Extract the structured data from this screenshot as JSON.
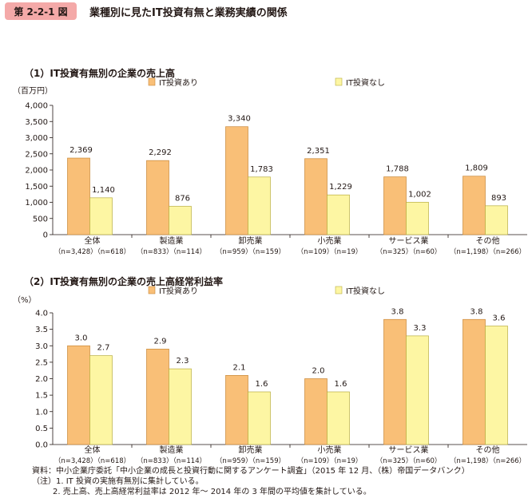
{
  "figure": {
    "number": "第 2-2-1 図",
    "title": "業種別に見たIT投資有無と業務実績の関係"
  },
  "notes": {
    "source": "資料：中小企業庁委託「中小企業の成長と投資行動に関するアンケート調査」（2015 年 12 月、（株）帝国データバンク）",
    "note1": "（注）1. IT 投資の実施有無別に集計している。",
    "note2": "2. 売上高、売上高経常利益率は 2012 年〜 2014 年の 3 年間の平均値を集計している。"
  },
  "colors": {
    "invest": "#f9bf77",
    "invest_stroke": "#c8883a",
    "no_invest": "#fdf6a3",
    "no_invest_stroke": "#b8ae40"
  },
  "chart_data": [
    {
      "type": "bar",
      "title": "（1）IT投資有無別の企業の売上高",
      "ylabel": "（百万円）",
      "ylim": [
        0,
        4000
      ],
      "yticks": [
        "0",
        "500",
        "1,000",
        "1,500",
        "2,000",
        "2,500",
        "3,000",
        "3,500",
        "4,000"
      ],
      "ytick_values": [
        0,
        500,
        1000,
        1500,
        2000,
        2500,
        3000,
        3500,
        4000
      ],
      "categories": [
        "全体",
        "製造業",
        "卸売業",
        "小売業",
        "サービス業",
        "その他"
      ],
      "category_counts": [
        "（n=3,428）（n=618）",
        "（n=833）（n=114）",
        "（n=959）（n=159）",
        "（n=109）（n=19）",
        "（n=325）（n=60）",
        "（n=1,198）（n=266）"
      ],
      "legend_position": "top",
      "series": [
        {
          "name": "IT投資あり",
          "values": [
            2369,
            2292,
            3340,
            2351,
            1788,
            1809
          ],
          "labels": [
            "2,369",
            "2,292",
            "3,340",
            "2,351",
            "1,788",
            "1,809"
          ]
        },
        {
          "name": "IT投資なし",
          "values": [
            1140,
            876,
            1783,
            1229,
            1002,
            893
          ],
          "labels": [
            "1,140",
            "876",
            "1,783",
            "1,229",
            "1,002",
            "893"
          ]
        }
      ]
    },
    {
      "type": "bar",
      "title": "（2）IT投資有無別の企業の売上高経常利益率",
      "ylabel": "（%）",
      "ylim": [
        0,
        4.0
      ],
      "yticks": [
        "0.0",
        "0.5",
        "1.0",
        "1.5",
        "2.0",
        "2.5",
        "3.0",
        "3.5",
        "4.0"
      ],
      "ytick_values": [
        0,
        0.5,
        1.0,
        1.5,
        2.0,
        2.5,
        3.0,
        3.5,
        4.0
      ],
      "categories": [
        "全体",
        "製造業",
        "卸売業",
        "小売業",
        "サービス業",
        "その他"
      ],
      "category_counts": [
        "（n=3,428）（n=618）",
        "（n=833）（n=114）",
        "（n=959）（n=159）",
        "（n=109）（n=19）",
        "（n=325）（n=60）",
        "（n=1,198）（n=266）"
      ],
      "legend_position": "top",
      "series": [
        {
          "name": "IT投資あり",
          "values": [
            3.0,
            2.9,
            2.1,
            2.0,
            3.8,
            3.8
          ],
          "labels": [
            "3.0",
            "2.9",
            "2.1",
            "2.0",
            "3.8",
            "3.8"
          ]
        },
        {
          "name": "IT投資なし",
          "values": [
            2.7,
            2.3,
            1.6,
            1.6,
            3.3,
            3.6
          ],
          "labels": [
            "2.7",
            "2.3",
            "1.6",
            "1.6",
            "3.3",
            "3.6"
          ]
        }
      ]
    }
  ]
}
